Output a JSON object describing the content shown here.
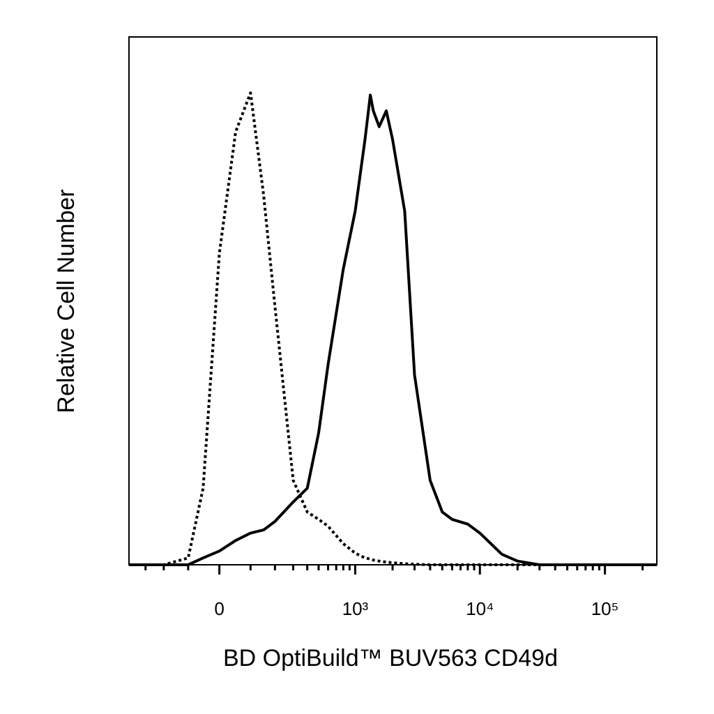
{
  "chart_data": {
    "type": "line",
    "xlabel": "BD OptiBuild™ BUV563 CD49d",
    "ylabel": "Relative Cell Number",
    "xscale": "biexponential",
    "xlim": [
      -420,
      260000
    ],
    "ylim": [
      0,
      100
    ],
    "xticks": [
      0,
      {
        "value": 1000,
        "label": "10³"
      },
      {
        "value": 10000,
        "label": "10⁴"
      },
      {
        "value": 100000,
        "label": "10⁵"
      }
    ],
    "xminorticks": [
      -300,
      -200,
      -100,
      100,
      200,
      300,
      400,
      500,
      600,
      700,
      800,
      900,
      2000,
      3000,
      4000,
      5000,
      6000,
      7000,
      8000,
      9000,
      20000,
      30000,
      40000,
      50000,
      60000,
      70000,
      80000,
      90000,
      200000
    ],
    "x": [
      -420,
      -300,
      -200,
      -100,
      -50,
      0,
      50,
      100,
      150,
      200,
      300,
      400,
      500,
      600,
      800,
      1000,
      1200,
      1325,
      1400,
      1560,
      1780,
      2000,
      2500,
      3000,
      4000,
      5000,
      6000,
      8000,
      10000,
      15000,
      20000,
      30000,
      50000,
      100000,
      260000
    ],
    "series": [
      {
        "color": "#000000",
        "style": "solid",
        "values": [
          0,
          0,
          0,
          0,
          1.3,
          2.6,
          4.6,
          6,
          6.6,
          8.2,
          11.9,
          14.5,
          25,
          38,
          56,
          67,
          80.6,
          89,
          86,
          83,
          86,
          80.6,
          67,
          36,
          16,
          10,
          8.6,
          7.7,
          6,
          2,
          0.7,
          0,
          0,
          0,
          0
        ]
      },
      {
        "color": "#000000",
        "style": "dotted",
        "values": [
          0,
          0,
          0,
          1.3,
          14.5,
          59,
          82,
          89.4,
          70,
          49,
          16,
          10,
          8.6,
          7.3,
          4,
          2.2,
          1.3,
          1.1,
          0.9,
          0.7,
          0.5,
          0.4,
          0.2,
          0.1,
          0,
          0,
          0,
          0,
          0,
          0,
          0,
          0,
          0,
          0,
          0
        ]
      }
    ]
  }
}
